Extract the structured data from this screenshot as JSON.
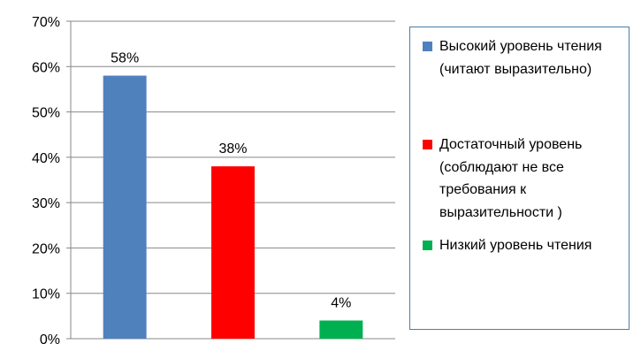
{
  "chart_data": {
    "type": "bar",
    "categories": [
      "Высокий уровень чтения (читают выразительно)",
      "Достаточный уровень (соблюдают не все требования к выразительности )",
      "Низкий уровень чтения"
    ],
    "values": [
      58,
      38,
      4
    ],
    "data_labels": [
      "58%",
      "38%",
      "4%"
    ],
    "colors": [
      "#4f81bd",
      "#ff0000",
      "#00b050"
    ],
    "y_ticks": [
      "0%",
      "10%",
      "20%",
      "30%",
      "40%",
      "50%",
      "60%",
      "70%"
    ],
    "ylim": [
      0,
      70
    ],
    "grid": true,
    "legend_position": "right",
    "legend": [
      {
        "label": "Высокий уровень чтения (читают выразительно)",
        "color": "#4f81bd"
      },
      {
        "label": "Достаточный уровень (соблюдают не все требования к выразительности )",
        "color": "#ff0000"
      },
      {
        "label": "Низкий уровень чтения",
        "color": "#00b050"
      }
    ]
  }
}
